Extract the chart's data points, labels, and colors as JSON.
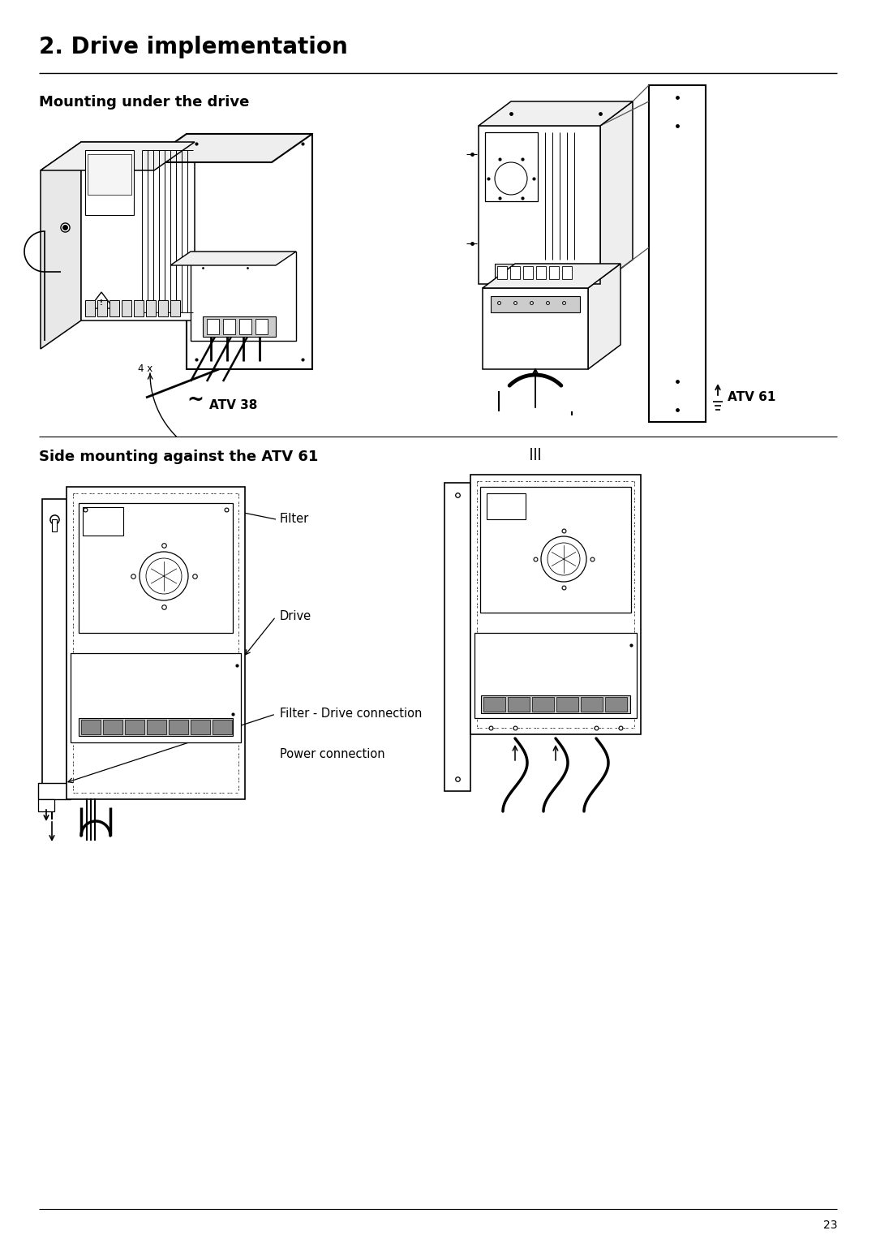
{
  "page_title": "2. Drive implementation",
  "section1_title": "Mounting under the drive",
  "section2_title": "Side mounting against the ATV 61",
  "label_atv38": "ATV 38",
  "label_atv61": "ATV 61",
  "label_filter": "Filter",
  "label_drive": "Drive",
  "label_filter_drive": "Filter - Drive connection",
  "label_power": "Power connection",
  "page_number": "23",
  "bg_color": "#ffffff",
  "text_color": "#000000",
  "title_fontsize": 20,
  "section_fontsize": 13,
  "label_fontsize": 10.5,
  "fig_width": 10.8,
  "fig_height": 15.27
}
